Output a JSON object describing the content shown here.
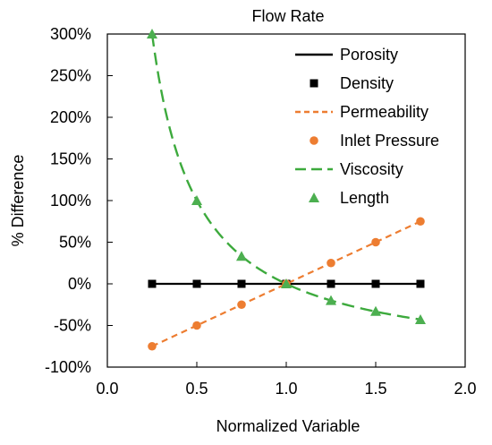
{
  "chart_data": {
    "type": "line",
    "title": "Flow Rate",
    "xlabel": "Normalized Variable",
    "ylabel": "% Difference",
    "xlim": [
      0.0,
      2.0
    ],
    "ylim": [
      -100,
      300
    ],
    "x_ticks": [
      0.0,
      0.5,
      1.0,
      1.5,
      2.0
    ],
    "x_tick_labels": [
      "0.0",
      "0.5",
      "1.0",
      "1.5",
      "2.0"
    ],
    "y_ticks": [
      -100,
      -50,
      0,
      50,
      100,
      150,
      200,
      250,
      300
    ],
    "y_tick_labels": [
      "-100%",
      "-50%",
      "0%",
      "50%",
      "100%",
      "150%",
      "200%",
      "250%",
      "300%"
    ],
    "grid": false,
    "legend_position": "top-right",
    "x": [
      0.25,
      0.5,
      0.75,
      1.0,
      1.25,
      1.5,
      1.75
    ],
    "series": [
      {
        "name": "Porosity",
        "kind": "line",
        "style": "solid",
        "color": "#000000",
        "x": [
          0.25,
          1.75
        ],
        "values": [
          0,
          0
        ]
      },
      {
        "name": "Density",
        "kind": "marker",
        "marker": "square",
        "color": "#000000",
        "values": [
          0,
          0,
          0,
          0,
          0,
          0,
          0
        ]
      },
      {
        "name": "Permeability",
        "kind": "line",
        "style": "dashed",
        "color": "#ED7D31",
        "x": [
          0.25,
          1.75
        ],
        "values": [
          -75,
          75
        ]
      },
      {
        "name": "Inlet Pressure",
        "kind": "marker",
        "marker": "circle",
        "color": "#ED7D31",
        "values": [
          -75,
          -50,
          -25,
          0,
          25,
          50,
          75
        ]
      },
      {
        "name": "Viscosity",
        "kind": "curve",
        "style": "dashed",
        "color": "#3DAA3D",
        "formula": "100/x - 100",
        "domain": [
          0.25,
          1.75
        ]
      },
      {
        "name": "Length",
        "kind": "marker",
        "marker": "triangle",
        "color": "#4CAF50",
        "values": [
          300,
          100,
          33,
          0,
          -20,
          -33,
          -43
        ]
      }
    ]
  }
}
